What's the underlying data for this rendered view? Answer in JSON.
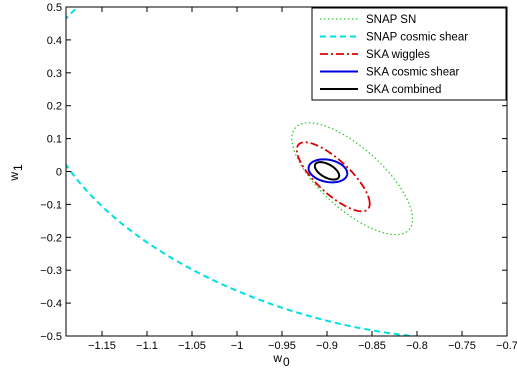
{
  "chart_data": {
    "type": "line",
    "title": "",
    "xlabel": "w",
    "xlabel_sub": "0",
    "ylabel": "w",
    "ylabel_sub": "1",
    "xlim": [
      -1.19,
      -0.7
    ],
    "ylim": [
      -0.5,
      0.5
    ],
    "grid": false,
    "legend_position": "top-right",
    "x_ticks": [
      -1.15,
      -1.1,
      -1.05,
      -1,
      -0.95,
      -0.9,
      -0.85,
      -0.8,
      -0.75,
      -0.7
    ],
    "x_tick_labels": [
      "−1.15",
      "−1.1",
      "−1.05",
      "−1",
      "−0.95",
      "−0.9",
      "−0.85",
      "−0.8",
      "−0.75",
      "−0.7"
    ],
    "y_ticks": [
      -0.5,
      -0.4,
      -0.3,
      -0.2,
      -0.1,
      0,
      0.1,
      0.2,
      0.3,
      0.4,
      0.5
    ],
    "y_tick_labels": [
      "−0.5",
      "−0.4",
      "−0.3",
      "−0.2",
      "−0.1",
      "0",
      "0.1",
      "0.2",
      "0.3",
      "0.4",
      "0.5"
    ],
    "series": [
      {
        "name": "SNAP SN",
        "color": "#33cc33",
        "dash": "dotted",
        "width": 1.3,
        "ellipse": {
          "cx": -0.872,
          "cy": -0.022,
          "sx": 0.067,
          "sy": 0.17,
          "rho": -0.72
        }
      },
      {
        "name": "SNAP cosmic shear",
        "color": "#00e0e0",
        "dash": "dashed",
        "width": 2,
        "ellipse": {
          "cx": -0.85,
          "cy": 0.08,
          "sx": 0.37,
          "sy": 0.59,
          "rho": -0.3
        }
      },
      {
        "name": "SKA wiggles",
        "color": "#dd0000",
        "dash": "dashdot",
        "width": 1.8,
        "ellipse": {
          "cx": -0.893,
          "cy": -0.016,
          "sx": 0.0405,
          "sy": 0.105,
          "rho": -0.78
        }
      },
      {
        "name": "SKA cosmic shear",
        "color": "#0000dd",
        "dash": "solid",
        "width": 2,
        "ellipse": {
          "cx": -0.899,
          "cy": 0.002,
          "sx": 0.0215,
          "sy": 0.035,
          "rho": -0.22
        }
      },
      {
        "name": "SKA combined",
        "color": "#000000",
        "dash": "solid",
        "width": 2,
        "ellipse": {
          "cx": -0.9,
          "cy": 0.002,
          "sx": 0.0135,
          "sy": 0.0265,
          "rho": -0.55
        }
      }
    ]
  }
}
